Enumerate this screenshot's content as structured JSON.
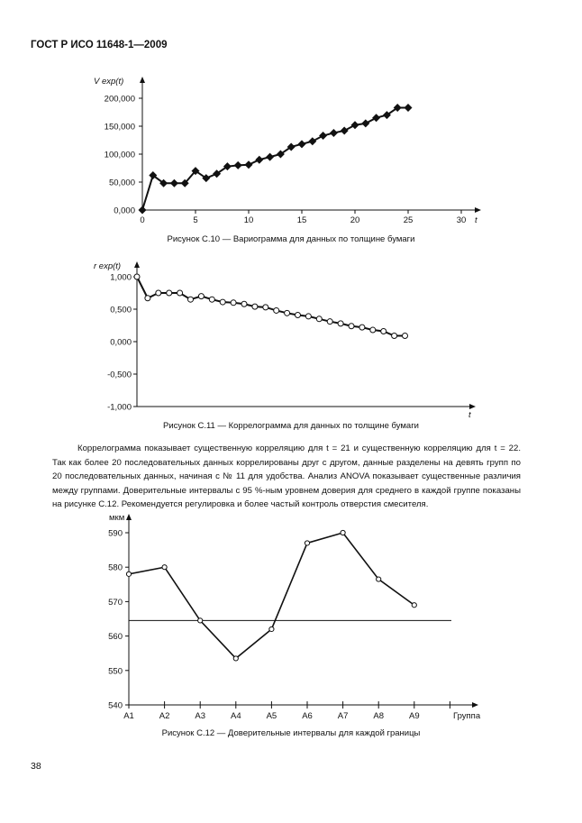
{
  "header": {
    "title": "ГОСТ Р ИСО 11648-1—2009"
  },
  "page_number": "38",
  "paragraph": "Коррелограмма показывает существенную корреляцию для  t  = 21 и существенную корреляцию для t  = 22. Так как более 20 последовательных данных коррелированы друг с другом, данные разделены на девять групп по 20 последовательных данных, начиная с № 11 для удобства. Анализ ANOVA показывает существенные различия между группами. Доверительные интервалы с 95 %-ным уровнем доверия для среднего в каждой группе показаны на рисунке С.12. Рекомендуется регулировка и более частый контроль отверстия смесителя.",
  "chart_data": [
    {
      "type": "line",
      "title": "Рисунок С.10 — Вариограмма для данных по толщине бумаги",
      "ylabel": "V exp(t)",
      "xlabel": "t",
      "xlim": [
        0,
        30
      ],
      "ylim": [
        0,
        200000
      ],
      "xticks": [
        "0",
        "5",
        "10",
        "15",
        "20",
        "25",
        "30"
      ],
      "yticks": [
        "0,000",
        "50,000",
        "100,000",
        "150,000",
        "200,000"
      ],
      "marker": "diamond",
      "x": [
        0,
        1,
        2,
        3,
        4,
        5,
        6,
        7,
        8,
        9,
        10,
        11,
        12,
        13,
        14,
        15,
        16,
        17,
        18,
        19,
        20,
        21,
        22,
        23,
        24,
        25
      ],
      "values": [
        0,
        62000,
        48000,
        48000,
        48000,
        70000,
        57000,
        65000,
        78000,
        80000,
        81000,
        90000,
        95000,
        100000,
        113000,
        118000,
        123000,
        133000,
        138000,
        142000,
        152000,
        155000,
        165000,
        170000,
        183000,
        183000
      ]
    },
    {
      "type": "line",
      "title": "Рисунок С.11 — Коррелограмма для данных по толщине бумаги",
      "ylabel": "r exp(t)",
      "xlabel": "t",
      "ylim": [
        -1,
        1
      ],
      "yticks": [
        "1,000",
        "0,500",
        "0,000",
        "-0,500",
        "-1,000"
      ],
      "marker": "circle",
      "x": [
        0,
        1,
        2,
        3,
        4,
        5,
        6,
        7,
        8,
        9,
        10,
        11,
        12,
        13,
        14,
        15,
        16,
        17,
        18,
        19,
        20,
        21,
        22,
        23,
        24,
        25
      ],
      "values": [
        1.0,
        0.67,
        0.75,
        0.75,
        0.75,
        0.65,
        0.7,
        0.65,
        0.61,
        0.6,
        0.58,
        0.54,
        0.53,
        0.48,
        0.44,
        0.41,
        0.39,
        0.35,
        0.31,
        0.28,
        0.24,
        0.22,
        0.18,
        0.16,
        0.09,
        0.09
      ]
    },
    {
      "type": "line",
      "title": "Рисунок С.12 — Доверительные интервалы для каждой границы",
      "ylabel": "мкм",
      "xlabel": "Группа",
      "ylim": [
        540,
        590
      ],
      "yticks": [
        "540",
        "550",
        "560",
        "570",
        "580",
        "590"
      ],
      "categories": [
        "A1",
        "A2",
        "A3",
        "A4",
        "A5",
        "A6",
        "A7",
        "A8",
        "A9"
      ],
      "values": [
        578,
        580,
        564.5,
        553.5,
        562,
        587,
        590,
        576.5,
        569
      ],
      "reference_line": 564.5,
      "marker": "circle"
    }
  ]
}
